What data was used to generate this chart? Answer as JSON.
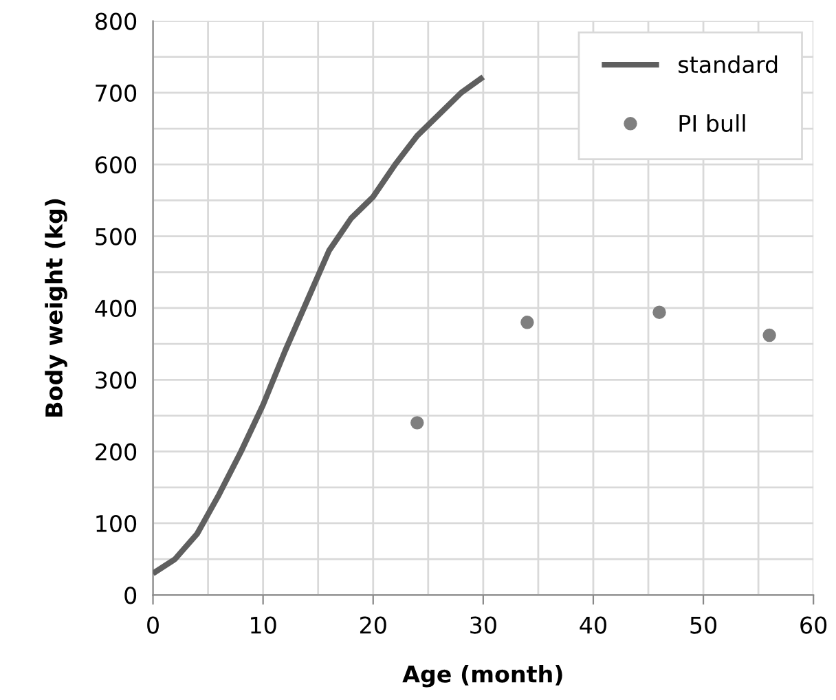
{
  "chart_data": {
    "type": "line",
    "xlabel": "Age (month)",
    "ylabel": "Body weight (kg)",
    "xlim": [
      0,
      60
    ],
    "ylim": [
      0,
      800
    ],
    "xticks": [
      0,
      {
        "value": 5,
        "label": null
      },
      10,
      {
        "value": 15,
        "label": null
      },
      20,
      {
        "value": 25,
        "label": null
      },
      30,
      {
        "value": 35,
        "label": null
      },
      40,
      {
        "value": 45,
        "label": null
      },
      50,
      {
        "value": 55,
        "label": null
      },
      60
    ],
    "yticks": [
      0,
      {
        "value": 50,
        "label": null
      },
      100,
      {
        "value": 150,
        "label": null
      },
      200,
      {
        "value": 250,
        "label": null
      },
      300,
      {
        "value": 350,
        "label": null
      },
      400,
      {
        "value": 450,
        "label": null
      },
      500,
      {
        "value": 550,
        "label": null
      },
      600,
      {
        "value": 650,
        "label": null
      },
      700,
      {
        "value": 750,
        "label": null
      },
      800
    ],
    "grid": true,
    "legend": "top right",
    "series": [
      {
        "name": "standard",
        "color": "#5f5f5f",
        "marker": "none",
        "x": [
          0,
          2,
          4,
          6,
          8,
          10,
          12,
          14,
          16,
          18,
          20,
          22,
          24,
          26,
          28,
          30
        ],
        "values": [
          30,
          50,
          85,
          140,
          200,
          265,
          340,
          410,
          480,
          525,
          555,
          600,
          640,
          670,
          700,
          722
        ]
      },
      {
        "name": "PI bull",
        "type": "scatter",
        "color": "#7f7f7f",
        "marker": "circle",
        "x": [
          24,
          34,
          46,
          56
        ],
        "values": [
          240,
          380,
          394,
          362
        ]
      }
    ]
  }
}
